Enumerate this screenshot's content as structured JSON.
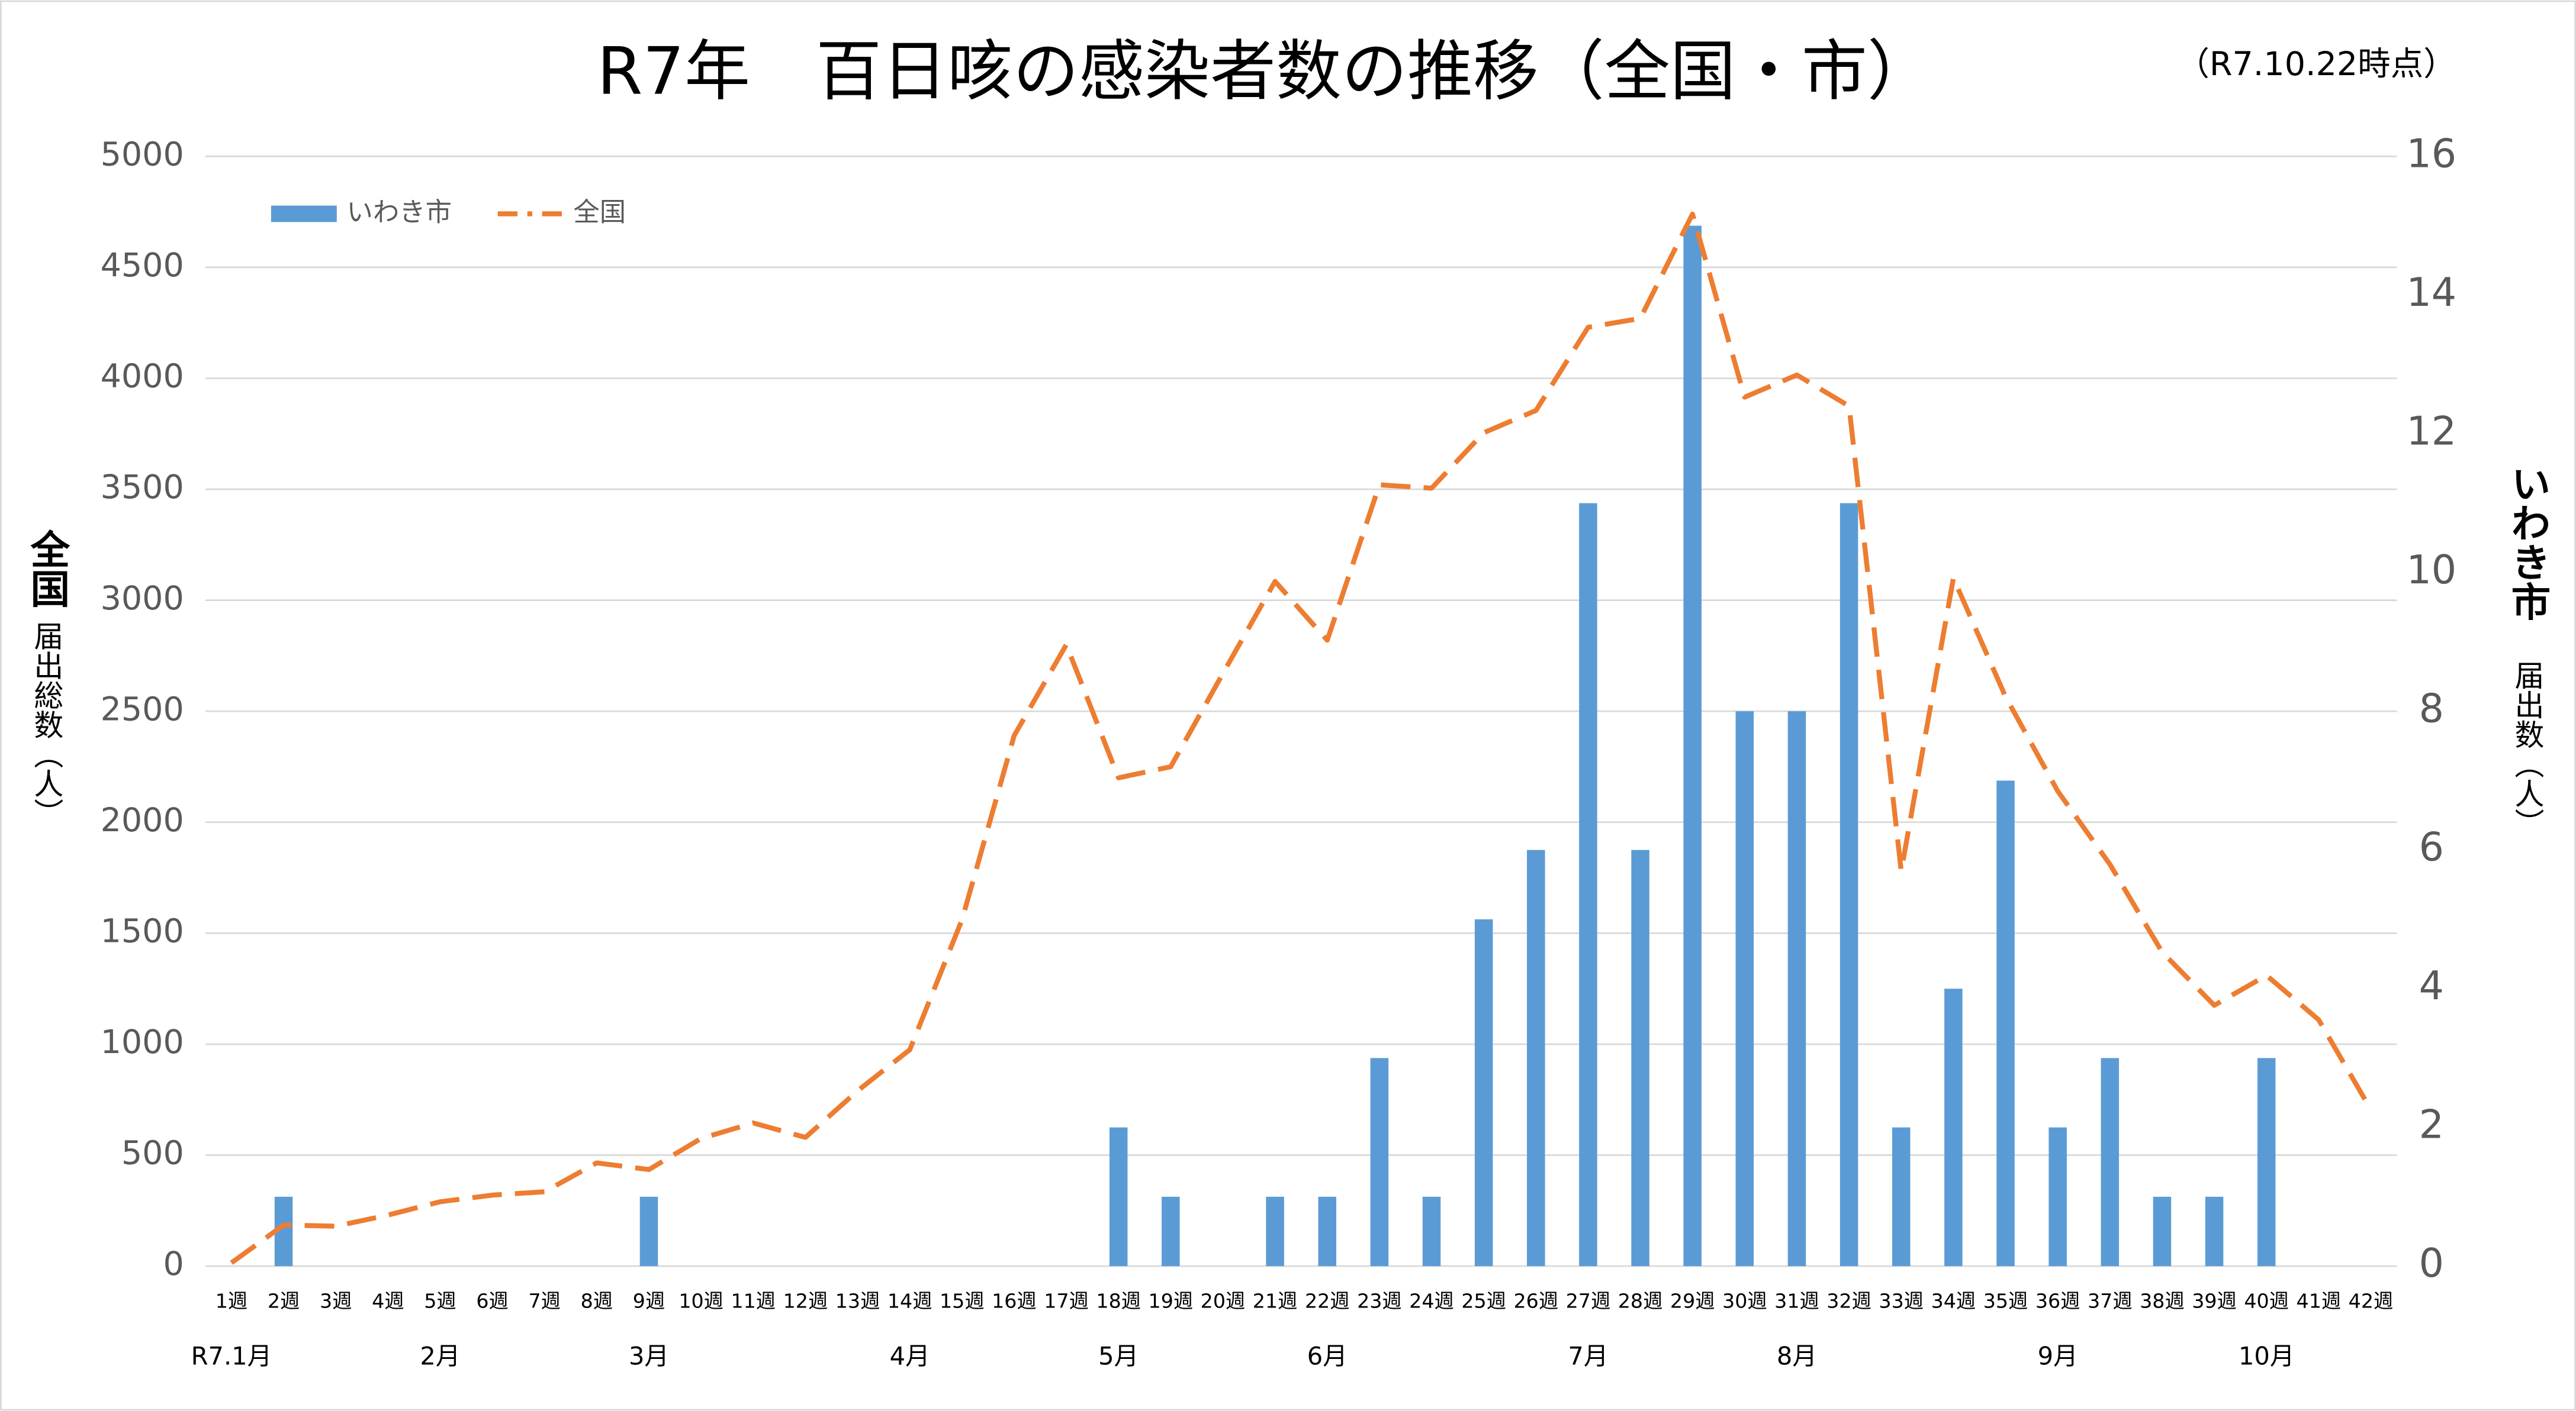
{
  "chart_data": {
    "type": "bar_line",
    "title": "R7年　百日咳の感染者数の推移（全国・市）",
    "subtitle": "（R7.10.22時点）",
    "y_label": {
      "main": "全国",
      "sub": "届出総数（人）"
    },
    "y2_label": {
      "main": "いわき市",
      "sub": "届出数（人）"
    },
    "categories": [
      "1週",
      "2週",
      "3週",
      "4週",
      "5週",
      "6週",
      "7週",
      "8週",
      "9週",
      "10週",
      "11週",
      "12週",
      "13週",
      "14週",
      "15週",
      "16週",
      "17週",
      "18週",
      "19週",
      "20週",
      "21週",
      "22週",
      "23週",
      "24週",
      "25週",
      "26週",
      "27週",
      "28週",
      "29週",
      "30週",
      "31週",
      "32週",
      "33週",
      "34週",
      "35週",
      "36週",
      "37週",
      "38週",
      "39週",
      "40週",
      "41週",
      "42週"
    ],
    "months": [
      "R7.1月",
      null,
      null,
      null,
      "2月",
      null,
      null,
      null,
      "3月",
      null,
      null,
      null,
      null,
      "4月",
      null,
      null,
      null,
      "5月",
      null,
      null,
      null,
      "6月",
      null,
      null,
      null,
      null,
      "7月",
      null,
      null,
      null,
      "8月",
      null,
      null,
      null,
      null,
      "9月",
      null,
      null,
      null,
      "10月",
      null,
      null
    ],
    "series": [
      {
        "name": "いわき市",
        "type": "bar",
        "axis": "y2",
        "color": "#5b9bd5",
        "values": [
          0,
          1,
          0,
          0,
          0,
          0,
          0,
          0,
          1,
          0,
          0,
          0,
          0,
          0,
          0,
          0,
          0,
          2,
          1,
          0,
          1,
          1,
          3,
          1,
          5,
          6,
          11,
          6,
          15,
          8,
          8,
          11,
          2,
          4,
          7,
          2,
          3,
          1,
          1,
          3,
          0,
          0
        ]
      },
      {
        "name": "全国",
        "type": "line",
        "axis": "y",
        "color": "#ed7d31",
        "dashed": true,
        "values": [
          15,
          185,
          180,
          230,
          290,
          320,
          335,
          465,
          435,
          575,
          645,
          580,
          790,
          975,
          1560,
          2390,
          2800,
          2200,
          2250,
          2670,
          3085,
          2820,
          3520,
          3505,
          3755,
          3855,
          4230,
          4270,
          4740,
          3915,
          4015,
          3875,
          1780,
          3100,
          2565,
          2140,
          1810,
          1415,
          1175,
          1310,
          1110,
          705
        ]
      }
    ],
    "ylim": [
      0,
      5000
    ],
    "yticks": [
      0,
      500,
      1000,
      1500,
      2000,
      2500,
      3000,
      3500,
      4000,
      4500,
      5000
    ],
    "y2lim": [
      0,
      16
    ],
    "y2ticks": [
      0,
      2,
      4,
      6,
      8,
      10,
      12,
      14,
      16
    ],
    "grid": true,
    "legend": "top-left"
  }
}
